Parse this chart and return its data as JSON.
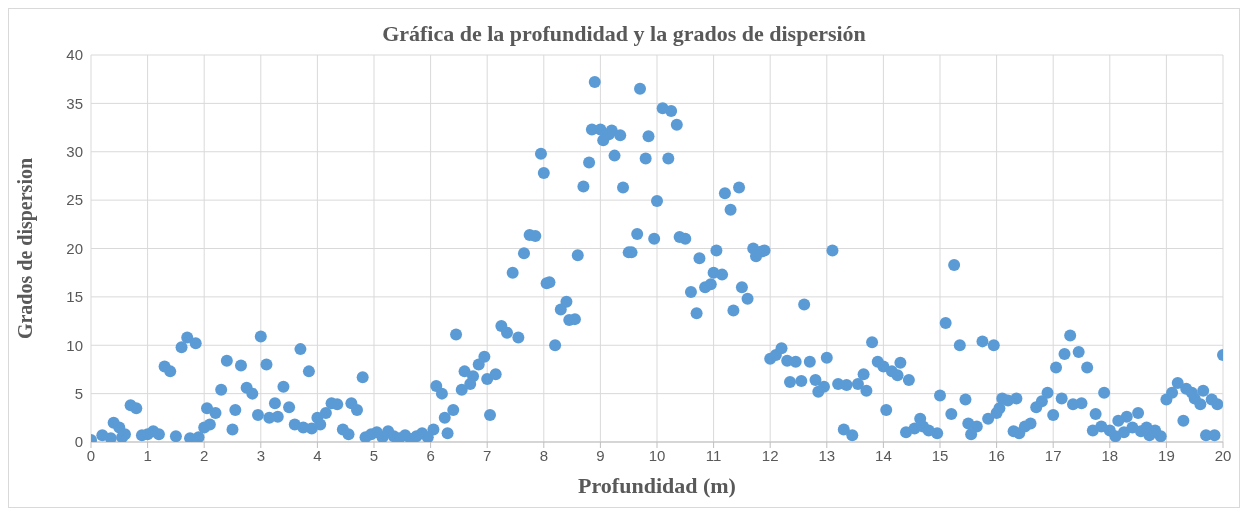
{
  "chart_data": {
    "type": "scatter",
    "title": "Gráfica de la profundidad y la grados de dispersión",
    "xlabel": "Profundidad (m)",
    "ylabel": "Grados de dispersion",
    "x": [
      0,
      0.2,
      0.35,
      0.4,
      0.5,
      0.55,
      0.6,
      0.7,
      0.8,
      0.9,
      1,
      1.1,
      1.2,
      1.3,
      1.4,
      1.5,
      1.6,
      1.7,
      1.75,
      1.85,
      1.9,
      2,
      2.05,
      2.1,
      2.2,
      2.3,
      2.4,
      2.5,
      2.55,
      2.65,
      2.75,
      2.85,
      2.95,
      3,
      3.1,
      3.15,
      3.25,
      3.3,
      3.4,
      3.5,
      3.6,
      3.7,
      3.75,
      3.85,
      3.9,
      4,
      4.05,
      4.15,
      4.25,
      4.35,
      4.45,
      4.55,
      4.6,
      4.7,
      4.8,
      4.85,
      4.95,
      5.05,
      5.15,
      5.25,
      5.35,
      5.45,
      5.55,
      5.65,
      5.75,
      5.85,
      5.95,
      6.05,
      6.1,
      6.2,
      6.25,
      6.3,
      6.4,
      6.45,
      6.55,
      6.6,
      6.7,
      6.75,
      6.85,
      6.95,
      7,
      7.05,
      7.15,
      7.25,
      7.35,
      7.45,
      7.55,
      7.65,
      7.75,
      7.85,
      7.95,
      8,
      8.05,
      8.1,
      8.2,
      8.3,
      8.4,
      8.45,
      8.55,
      8.6,
      8.7,
      8.8,
      8.85,
      8.9,
      9,
      9.05,
      9.15,
      9.2,
      9.25,
      9.35,
      9.4,
      9.5,
      9.55,
      9.65,
      9.7,
      9.8,
      9.85,
      9.95,
      10,
      10.1,
      10.2,
      10.25,
      10.35,
      10.4,
      10.5,
      10.6,
      10.7,
      10.75,
      10.85,
      10.95,
      11,
      11.05,
      11.15,
      11.2,
      11.3,
      11.35,
      11.45,
      11.5,
      11.6,
      11.7,
      11.75,
      11.85,
      11.9,
      12,
      12.1,
      12.2,
      12.3,
      12.35,
      12.45,
      12.55,
      12.6,
      12.7,
      12.8,
      12.85,
      12.95,
      13,
      13.1,
      13.2,
      13.3,
      13.35,
      13.45,
      13.55,
      13.65,
      13.7,
      13.8,
      13.9,
      14,
      14.05,
      14.15,
      14.25,
      14.3,
      14.4,
      14.45,
      14.55,
      14.65,
      14.7,
      14.8,
      14.95,
      15,
      15.1,
      15.2,
      15.25,
      15.35,
      15.45,
      15.5,
      15.55,
      15.65,
      15.75,
      15.85,
      15.95,
      16,
      16.05,
      16.1,
      16.2,
      16.3,
      16.35,
      16.4,
      16.5,
      16.6,
      16.7,
      16.8,
      16.9,
      17,
      17.05,
      17.15,
      17.2,
      17.3,
      17.35,
      17.45,
      17.5,
      17.6,
      17.7,
      17.75,
      17.85,
      17.9,
      18,
      18.1,
      18.15,
      18.25,
      18.3,
      18.4,
      18.5,
      18.55,
      18.65,
      18.7,
      18.8,
      18.9,
      19,
      19.1,
      19.2,
      19.3,
      19.35,
      19.45,
      19.5,
      19.6,
      19.65,
      19.7,
      19.8,
      19.85,
      19.9,
      20
    ],
    "series": [
      {
        "color": "#5b9bd5",
        "values": [
          0.2,
          0.7,
          0.4,
          2,
          1.5,
          0.5,
          0.8,
          3.8,
          3.5,
          0.7,
          0.8,
          1.1,
          0.8,
          7.8,
          7.3,
          0.6,
          9.8,
          10.8,
          0.4,
          10.2,
          0.5,
          1.5,
          3.5,
          1.8,
          3,
          5.4,
          8.4,
          1.3,
          3.3,
          7.9,
          5.6,
          5,
          2.8,
          10.9,
          8,
          2.5,
          4,
          2.6,
          5.7,
          3.6,
          1.8,
          9.6,
          1.5,
          7.3,
          1.4,
          2.5,
          1.8,
          3,
          4,
          3.9,
          1.3,
          0.8,
          4,
          3.3,
          6.7,
          0.5,
          0.8,
          1,
          0.5,
          1.1,
          0.6,
          0.4,
          0.7,
          0.3,
          0.6,
          0.9,
          0.5,
          1.3,
          5.8,
          5,
          2.5,
          0.9,
          3.3,
          11.1,
          5.4,
          7.3,
          6,
          6.8,
          8,
          8.8,
          6.5,
          2.8,
          7,
          12,
          11.3,
          17.5,
          10.8,
          19.5,
          21.4,
          21.3,
          29.8,
          27.8,
          16.4,
          16.5,
          10,
          13.7,
          14.5,
          12.6,
          12.7,
          19.3,
          26.4,
          28.9,
          32.3,
          37.2,
          32.3,
          31.2,
          31.8,
          32.2,
          29.6,
          31.7,
          26.3,
          19.6,
          19.6,
          21.5,
          36.5,
          29.3,
          31.6,
          21,
          24.9,
          34.5,
          29.3,
          34.2,
          32.8,
          21.2,
          21,
          15.5,
          13.3,
          19,
          16,
          16.3,
          17.5,
          19.8,
          17.3,
          25.7,
          24,
          13.6,
          26.3,
          16,
          14.8,
          20,
          19.2,
          19.7,
          19.8,
          8.6,
          9,
          9.7,
          8.4,
          6.2,
          8.3,
          6.3,
          14.2,
          8.3,
          6.4,
          5.2,
          5.7,
          8.7,
          19.8,
          6,
          1.3,
          5.9,
          0.7,
          6,
          7,
          5.3,
          10.3,
          8.3,
          7.8,
          3.3,
          7.3,
          6.9,
          8.2,
          1,
          6.4,
          1.4,
          2.4,
          1.6,
          1.2,
          0.9,
          4.8,
          12.3,
          2.9,
          18.3,
          10,
          4.4,
          1.9,
          0.8,
          1.6,
          10.4,
          2.4,
          10,
          3,
          3.5,
          4.5,
          4.3,
          1.1,
          4.5,
          0.9,
          1.6,
          1.9,
          3.6,
          4.2,
          5.1,
          2.8,
          7.7,
          4.5,
          9.1,
          11,
          3.9,
          9.3,
          4,
          7.7,
          1.2,
          2.9,
          1.6,
          5.1,
          1.2,
          0.6,
          2.2,
          1,
          2.6,
          1.5,
          3,
          1.1,
          1.5,
          0.7,
          1.2,
          0.6,
          4.4,
          5.1,
          6.1,
          2.2,
          5.5,
          5.1,
          4.5,
          3.9,
          5.3,
          0.7,
          4.4,
          0.7,
          3.9,
          9
        ]
      }
    ],
    "xlim": [
      0,
      20
    ],
    "xticks": [
      0,
      1,
      2,
      3,
      4,
      5,
      6,
      7,
      8,
      9,
      10,
      11,
      12,
      13,
      14,
      15,
      16,
      17,
      18,
      19,
      20
    ],
    "ylim": [
      0,
      40
    ],
    "yticks": [
      0,
      5,
      10,
      15,
      20,
      25,
      30,
      35,
      40
    ],
    "grid": true,
    "marker": "circle",
    "legend": false
  }
}
